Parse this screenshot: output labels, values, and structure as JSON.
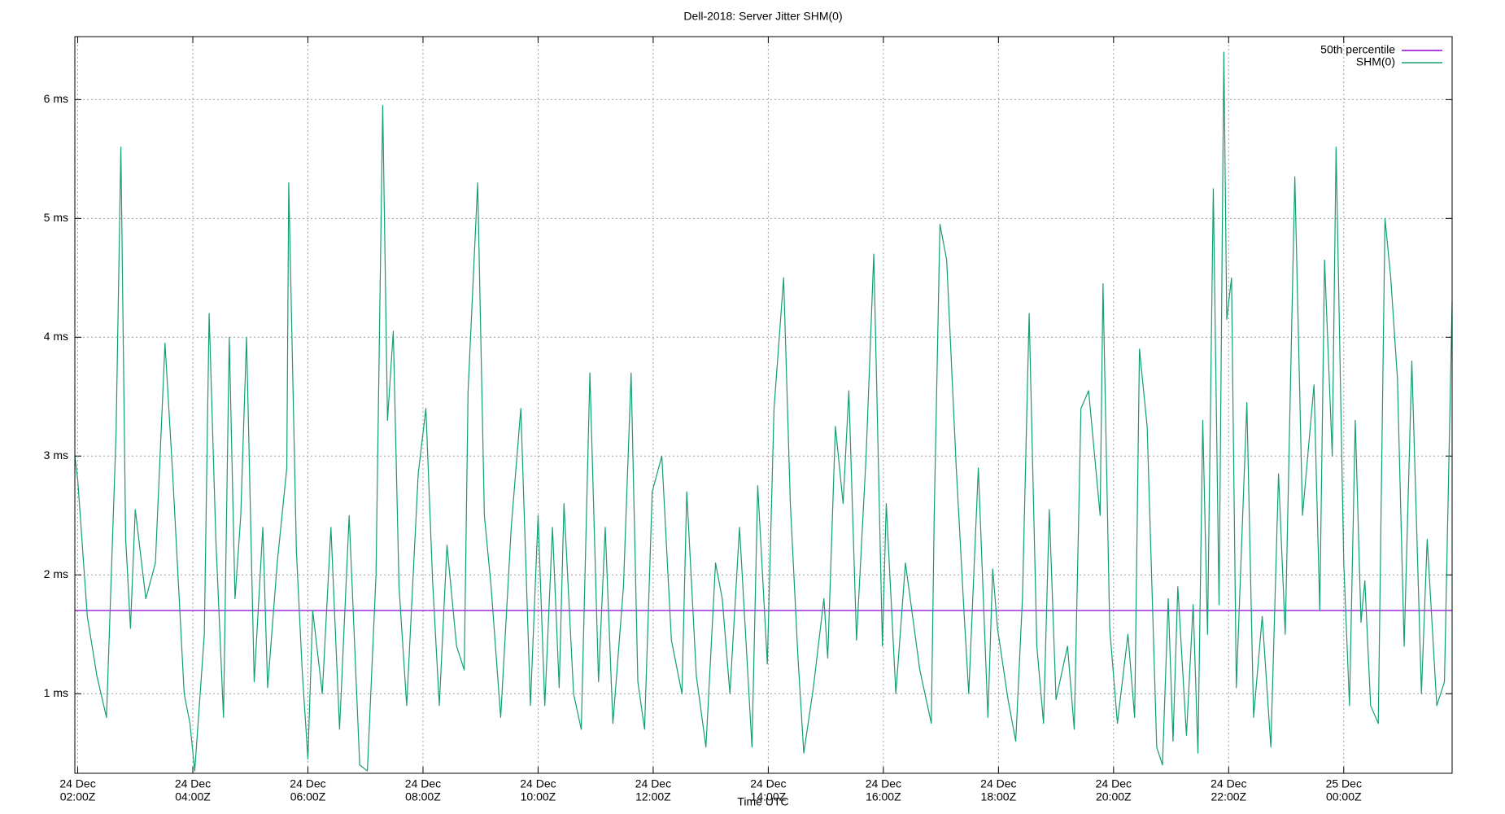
{
  "chart_data": {
    "type": "line",
    "title": "Dell-2018: Server Jitter SHM(0)",
    "x_label": "Time UTC",
    "xlim": [
      "24 Dec 01:57Z",
      "25 Dec 01:53Z"
    ],
    "xticks": [
      {
        "value": "24 Dec 02:00Z",
        "label": [
          "24 Dec",
          "02:00Z"
        ]
      },
      {
        "value": "24 Dec 04:00Z",
        "label": [
          "24 Dec",
          "04:00Z"
        ]
      },
      {
        "value": "24 Dec 06:00Z",
        "label": [
          "24 Dec",
          "06:00Z"
        ]
      },
      {
        "value": "24 Dec 08:00Z",
        "label": [
          "24 Dec",
          "08:00Z"
        ]
      },
      {
        "value": "24 Dec 10:00Z",
        "label": [
          "24 Dec",
          "10:00Z"
        ]
      },
      {
        "value": "24 Dec 12:00Z",
        "label": [
          "24 Dec",
          "12:00Z"
        ]
      },
      {
        "value": "24 Dec 14:00Z",
        "label": [
          "24 Dec",
          "14:00Z"
        ]
      },
      {
        "value": "24 Dec 16:00Z",
        "label": [
          "24 Dec",
          "16:00Z"
        ]
      },
      {
        "value": "24 Dec 18:00Z",
        "label": [
          "24 Dec",
          "18:00Z"
        ]
      },
      {
        "value": "24 Dec 20:00Z",
        "label": [
          "24 Dec",
          "20:00Z"
        ]
      },
      {
        "value": "24 Dec 22:00Z",
        "label": [
          "24 Dec",
          "22:00Z"
        ]
      },
      {
        "value": "25 Dec 00:00Z",
        "label": [
          "25 Dec",
          "00:00Z"
        ]
      }
    ],
    "ylim": [
      0.33,
      6.53
    ],
    "yticks": [
      {
        "value": 1,
        "label": "1 ms"
      },
      {
        "value": 2,
        "label": "2 ms"
      },
      {
        "value": 3,
        "label": "3 ms"
      },
      {
        "value": 4,
        "label": "4 ms"
      },
      {
        "value": 5,
        "label": "5 ms"
      },
      {
        "value": 6,
        "label": "6 ms"
      }
    ],
    "grid": true,
    "legend": "top-right",
    "series": [
      {
        "name": "50th percentile",
        "color": "#9400d3",
        "x": [
          "24 Dec 01:57Z",
          "25 Dec 01:53Z"
        ],
        "values": [
          1.7,
          1.7
        ]
      },
      {
        "name": "SHM(0)",
        "color": "#139e74",
        "x": [
          "24 Dec 01:57Z",
          "24 Dec 02:00Z",
          "24 Dec 02:10Z",
          "24 Dec 02:20Z",
          "24 Dec 02:30Z",
          "24 Dec 02:40Z",
          "24 Dec 02:45Z",
          "24 Dec 02:50Z",
          "24 Dec 02:55Z",
          "24 Dec 03:00Z",
          "24 Dec 03:11Z",
          "24 Dec 03:21Z",
          "24 Dec 03:31Z",
          "24 Dec 03:39Z",
          "24 Dec 03:51Z",
          "24 Dec 03:57Z",
          "24 Dec 04:02Z",
          "24 Dec 04:12Z",
          "24 Dec 04:17Z",
          "24 Dec 04:24Z",
          "24 Dec 04:32Z",
          "24 Dec 04:38Z",
          "24 Dec 04:44Z",
          "24 Dec 04:50Z",
          "24 Dec 04:56Z",
          "24 Dec 05:04Z",
          "24 Dec 05:13Z",
          "24 Dec 05:18Z",
          "24 Dec 05:28Z",
          "24 Dec 05:38Z",
          "24 Dec 05:40Z",
          "24 Dec 05:48Z",
          "24 Dec 05:54Z",
          "24 Dec 06:00Z",
          "24 Dec 06:05Z",
          "24 Dec 06:15Z",
          "24 Dec 06:24Z",
          "24 Dec 06:33Z",
          "24 Dec 06:43Z",
          "24 Dec 06:54Z",
          "24 Dec 07:02Z",
          "24 Dec 07:11Z",
          "24 Dec 07:18Z",
          "24 Dec 07:23Z",
          "24 Dec 07:29Z",
          "24 Dec 07:35Z",
          "24 Dec 07:43Z",
          "24 Dec 07:55Z",
          "24 Dec 08:03Z",
          "24 Dec 08:10Z",
          "24 Dec 08:17Z",
          "24 Dec 08:25Z",
          "24 Dec 08:35Z",
          "24 Dec 08:43Z",
          "24 Dec 08:47Z",
          "24 Dec 08:57Z",
          "24 Dec 09:04Z",
          "24 Dec 09:11Z",
          "24 Dec 09:21Z",
          "24 Dec 09:32Z",
          "24 Dec 09:42Z",
          "24 Dec 09:52Z",
          "24 Dec 10:00Z",
          "24 Dec 10:07Z",
          "24 Dec 10:15Z",
          "24 Dec 10:22Z",
          "24 Dec 10:27Z",
          "24 Dec 10:37Z",
          "24 Dec 10:45Z",
          "24 Dec 10:54Z",
          "24 Dec 11:03Z",
          "24 Dec 11:10Z",
          "24 Dec 11:18Z",
          "24 Dec 11:29Z",
          "24 Dec 11:37Z",
          "24 Dec 11:44Z",
          "24 Dec 11:51Z",
          "24 Dec 11:59Z",
          "24 Dec 12:09Z",
          "24 Dec 12:19Z",
          "24 Dec 12:30Z",
          "24 Dec 12:35Z",
          "24 Dec 12:45Z",
          "24 Dec 12:55Z",
          "24 Dec 13:05Z",
          "24 Dec 13:12Z",
          "24 Dec 13:20Z",
          "24 Dec 13:30Z",
          "24 Dec 13:43Z",
          "24 Dec 13:49Z",
          "24 Dec 13:59Z",
          "24 Dec 14:06Z",
          "24 Dec 14:16Z",
          "24 Dec 14:23Z",
          "24 Dec 14:31Z",
          "24 Dec 14:37Z",
          "24 Dec 14:47Z",
          "24 Dec 14:58Z",
          "24 Dec 15:02Z",
          "24 Dec 15:10Z",
          "24 Dec 15:18Z",
          "24 Dec 15:24Z",
          "24 Dec 15:32Z",
          "24 Dec 15:42Z",
          "24 Dec 15:50Z",
          "24 Dec 15:59Z",
          "24 Dec 16:03Z",
          "24 Dec 16:13Z",
          "24 Dec 16:23Z",
          "24 Dec 16:38Z",
          "24 Dec 16:50Z",
          "24 Dec 16:53Z",
          "24 Dec 16:59Z",
          "24 Dec 17:06Z",
          "24 Dec 17:16Z",
          "24 Dec 17:24Z",
          "24 Dec 17:29Z",
          "24 Dec 17:39Z",
          "24 Dec 17:49Z",
          "24 Dec 17:54Z",
          "24 Dec 17:59Z",
          "24 Dec 18:10Z",
          "24 Dec 18:18Z",
          "24 Dec 18:25Z",
          "24 Dec 18:32Z",
          "24 Dec 18:40Z",
          "24 Dec 18:47Z",
          "24 Dec 18:53Z",
          "24 Dec 19:00Z",
          "24 Dec 19:12Z",
          "24 Dec 19:19Z",
          "24 Dec 19:26Z",
          "24 Dec 19:34Z",
          "24 Dec 19:46Z",
          "24 Dec 19:49Z",
          "24 Dec 19:56Z",
          "24 Dec 20:04Z",
          "24 Dec 20:15Z",
          "24 Dec 20:22Z",
          "24 Dec 20:27Z",
          "24 Dec 20:35Z",
          "24 Dec 20:45Z",
          "24 Dec 20:51Z",
          "24 Dec 20:57Z",
          "24 Dec 21:02Z",
          "24 Dec 21:07Z",
          "24 Dec 21:16Z",
          "24 Dec 21:23Z",
          "24 Dec 21:28Z",
          "24 Dec 21:33Z",
          "24 Dec 21:38Z",
          "24 Dec 21:44Z",
          "24 Dec 21:50Z",
          "24 Dec 21:55Z",
          "24 Dec 21:58Z",
          "24 Dec 22:03Z",
          "24 Dec 22:08Z",
          "24 Dec 22:19Z",
          "24 Dec 22:26Z",
          "24 Dec 22:35Z",
          "24 Dec 22:44Z",
          "24 Dec 22:52Z",
          "24 Dec 22:59Z",
          "24 Dec 23:09Z",
          "24 Dec 23:17Z",
          "24 Dec 23:29Z",
          "24 Dec 23:35Z",
          "24 Dec 23:40Z",
          "24 Dec 23:48Z",
          "24 Dec 23:52Z",
          "25 Dec 00:00Z",
          "25 Dec 00:06Z",
          "25 Dec 00:12Z",
          "25 Dec 00:18Z",
          "25 Dec 00:22Z",
          "25 Dec 00:28Z",
          "25 Dec 00:36Z",
          "25 Dec 00:43Z",
          "25 Dec 00:49Z",
          "25 Dec 00:56Z",
          "25 Dec 01:03Z",
          "25 Dec 01:11Z",
          "25 Dec 01:21Z",
          "25 Dec 01:27Z",
          "25 Dec 01:37Z",
          "25 Dec 01:45Z",
          "25 Dec 01:53Z"
        ],
        "values": [
          3.0,
          2.8,
          1.65,
          1.15,
          0.8,
          3.2,
          5.6,
          2.3,
          1.55,
          2.55,
          1.8,
          2.1,
          3.95,
          2.85,
          1.0,
          0.75,
          0.35,
          1.5,
          4.2,
          2.3,
          0.8,
          4.0,
          1.8,
          2.5,
          4.0,
          1.1,
          2.4,
          1.05,
          2.1,
          2.9,
          5.3,
          2.2,
          1.2,
          0.45,
          1.7,
          1.0,
          2.4,
          0.7,
          2.5,
          0.4,
          0.35,
          2.0,
          5.95,
          3.3,
          4.05,
          1.9,
          0.9,
          2.85,
          3.4,
          1.95,
          0.9,
          2.25,
          1.4,
          1.2,
          3.55,
          5.3,
          2.5,
          1.9,
          0.8,
          2.4,
          3.4,
          0.9,
          2.5,
          0.9,
          2.4,
          1.05,
          2.6,
          1.0,
          0.7,
          3.7,
          1.1,
          2.4,
          0.75,
          1.9,
          3.7,
          1.1,
          0.7,
          2.7,
          3.0,
          1.45,
          1.0,
          2.7,
          1.15,
          0.55,
          2.1,
          1.8,
          1.0,
          2.4,
          0.55,
          2.75,
          1.25,
          3.4,
          4.5,
          2.6,
          1.3,
          0.5,
          1.05,
          1.8,
          1.3,
          3.25,
          2.6,
          3.55,
          1.45,
          3.0,
          4.7,
          1.4,
          2.6,
          1.0,
          2.1,
          1.2,
          0.75,
          2.5,
          4.95,
          4.65,
          2.9,
          1.7,
          1.0,
          2.9,
          0.8,
          2.05,
          1.55,
          0.95,
          0.6,
          1.8,
          4.2,
          1.4,
          0.75,
          2.55,
          0.95,
          1.4,
          0.7,
          3.4,
          3.55,
          2.5,
          4.45,
          1.55,
          0.75,
          1.5,
          0.8,
          3.9,
          3.25,
          0.55,
          0.4,
          1.8,
          0.6,
          1.9,
          0.65,
          1.75,
          0.5,
          3.3,
          1.5,
          5.25,
          1.75,
          6.4,
          4.15,
          4.5,
          1.05,
          3.45,
          0.8,
          1.65,
          0.55,
          2.85,
          1.5,
          5.35,
          2.5,
          3.6,
          1.7,
          4.65,
          3.0,
          5.6,
          2.1,
          0.9,
          3.3,
          1.6,
          1.95,
          0.9,
          0.75,
          5.0,
          4.5,
          3.65,
          1.4,
          3.8,
          1.0,
          2.3,
          0.9,
          1.1,
          4.3
        ]
      }
    ]
  }
}
